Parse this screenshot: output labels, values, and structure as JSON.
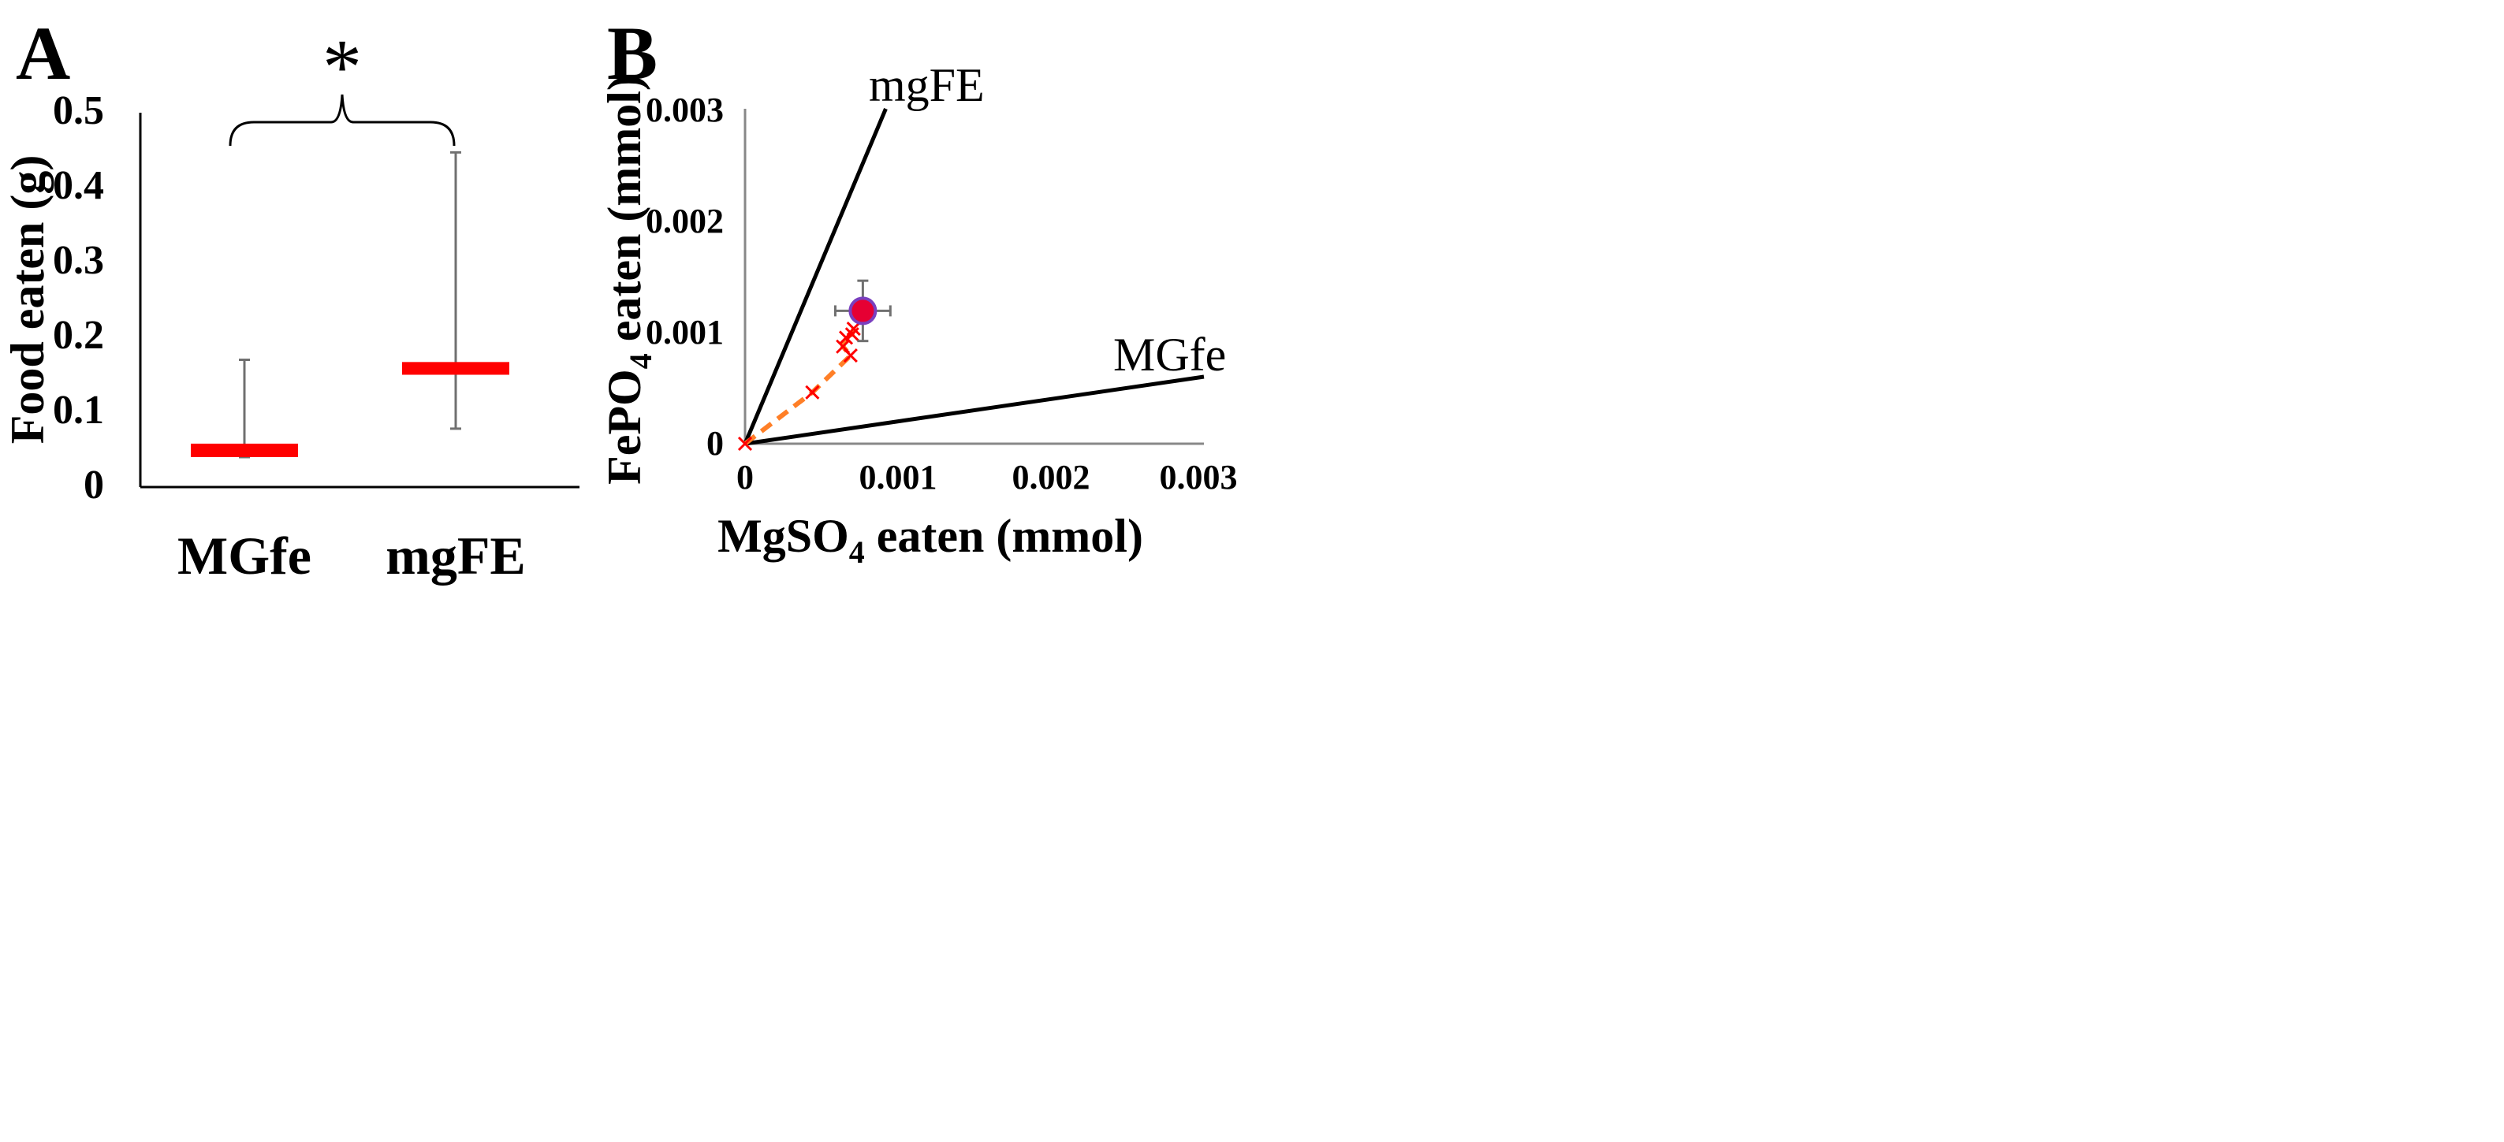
{
  "chart_data": [
    {
      "panel_label": "A",
      "type": "box",
      "xlabel": "",
      "ylabel": "Food eaten (g)",
      "ylim": [
        0,
        0.5
      ],
      "y_ticks": [
        "0",
        "0.1",
        "0.2",
        "0.3",
        "0.4",
        "0.5"
      ],
      "categories": [
        "MGfe",
        "mgFE"
      ],
      "series": [
        {
          "name": "MGfe",
          "low": 0.04,
          "median": 0.05,
          "high": 0.058,
          "whisker_min": 0.04,
          "whisker_max": 0.17,
          "color": "#ff0000"
        },
        {
          "name": "mgFE",
          "low": 0.15,
          "median": 0.158,
          "high": 0.167,
          "whisker_min": 0.078,
          "whisker_max": 0.447,
          "color": "#ff0000"
        }
      ],
      "annotation": {
        "text": "*",
        "between": [
          "MGfe",
          "mgFE"
        ]
      }
    },
    {
      "panel_label": "B",
      "type": "scatter",
      "xlabel": {
        "main": "MgSO",
        "sub": "4",
        "rest": " eaten (mmol)"
      },
      "ylabel": {
        "main": "FePO",
        "sub": "4",
        "rest": " eaten (mmol)"
      },
      "xlim": [
        0,
        0.003
      ],
      "ylim": [
        0,
        0.003
      ],
      "x_ticks": [
        "0",
        "0.001",
        "0.002",
        "0.003"
      ],
      "y_ticks": [
        "0",
        "0.001",
        "0.002",
        "0.003"
      ],
      "rails": [
        {
          "name": "mgFE",
          "x": [
            0,
            0.00092
          ],
          "y": [
            0,
            0.003
          ],
          "color": "#000000"
        },
        {
          "name": "MGfe",
          "x": [
            0,
            0.003
          ],
          "y": [
            0,
            0.0006
          ],
          "color": "#000000"
        }
      ],
      "trajectory": {
        "name": "trajectory",
        "color_line": "#ff7f27",
        "color_marker": "#ff0000",
        "x": [
          0,
          0.00044,
          0.00064,
          0.00066,
          0.0007,
          0.00069,
          0.00071
        ],
        "y": [
          0,
          0.00046,
          0.00087,
          0.00095,
          0.00098,
          0.00079,
          0.00103
        ]
      },
      "mean_point": {
        "x": 0.00077,
        "y": 0.00119,
        "x_err": 0.00018,
        "y_err": 0.00027,
        "color": "#e60033",
        "edge_color": "#7a3fbf"
      }
    }
  ]
}
